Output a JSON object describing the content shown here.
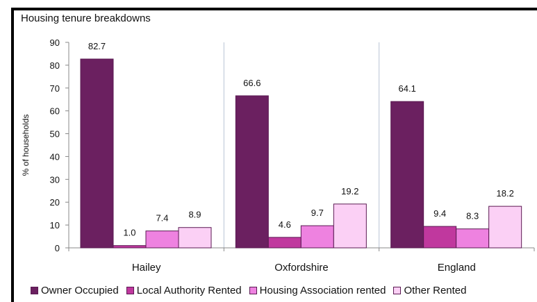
{
  "chart_data": {
    "type": "bar",
    "title": "Housing tenure breakdowns",
    "ylabel": "% of households",
    "xlabel": "",
    "ylim": [
      0,
      90
    ],
    "yticks": [
      0,
      10,
      20,
      30,
      40,
      50,
      60,
      70,
      80,
      90
    ],
    "categories": [
      "Hailey",
      "Oxfordshire",
      "England"
    ],
    "grid": false,
    "legend_position": "bottom",
    "series": [
      {
        "name": "Owner Occupied",
        "color": "#6b2060",
        "values": [
          82.7,
          66.6,
          64.1
        ],
        "labels": [
          "82.7",
          "66.6",
          "64.1"
        ]
      },
      {
        "name": "Local Authority Rented",
        "color": "#c0389e",
        "values": [
          1.0,
          4.6,
          9.4
        ],
        "labels": [
          "1.0",
          "4.6",
          "9.4"
        ]
      },
      {
        "name": "Housing Association rented",
        "color": "#ee82e0",
        "values": [
          7.4,
          9.7,
          8.3
        ],
        "labels": [
          "7.4",
          "9.7",
          "8.3"
        ]
      },
      {
        "name": "Other Rented",
        "color": "#fbd0f5",
        "values": [
          8.9,
          19.2,
          18.2
        ],
        "labels": [
          "8.9",
          "19.2",
          "18.2"
        ]
      }
    ]
  }
}
